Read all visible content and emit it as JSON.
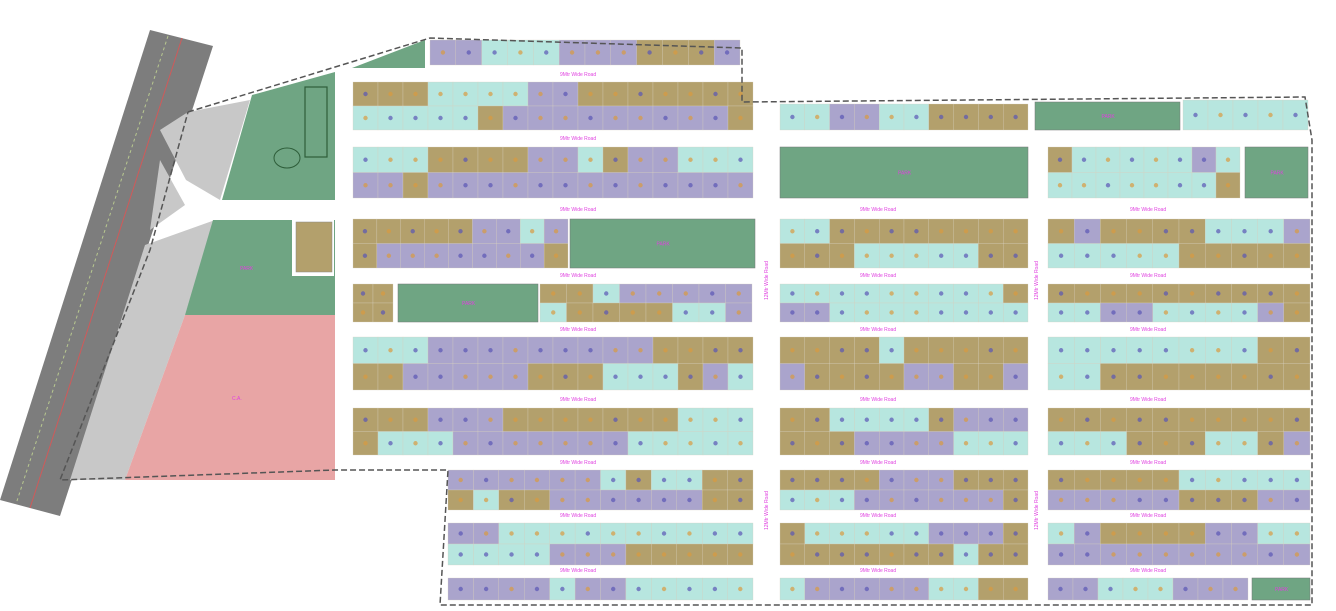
{
  "map": {
    "type": "site layout plan",
    "colors": {
      "highway": "#7d7d7d",
      "highway_stripe": "#d05a5a",
      "open_space": "#c8c8c8",
      "park": "#6fa583",
      "community_area": "#e8a5a5",
      "plot_khaki": "#b3a06c",
      "plot_lavender": "#aaa4cc",
      "plot_aqua": "#b7e6df",
      "boundary": "#555555",
      "label": "#e040e0"
    },
    "labels": {
      "park": "PARK",
      "community_area": "C.A.",
      "road_h": "9Mtr Wide Road",
      "road_v": "12Mtr Wide Road"
    }
  }
}
